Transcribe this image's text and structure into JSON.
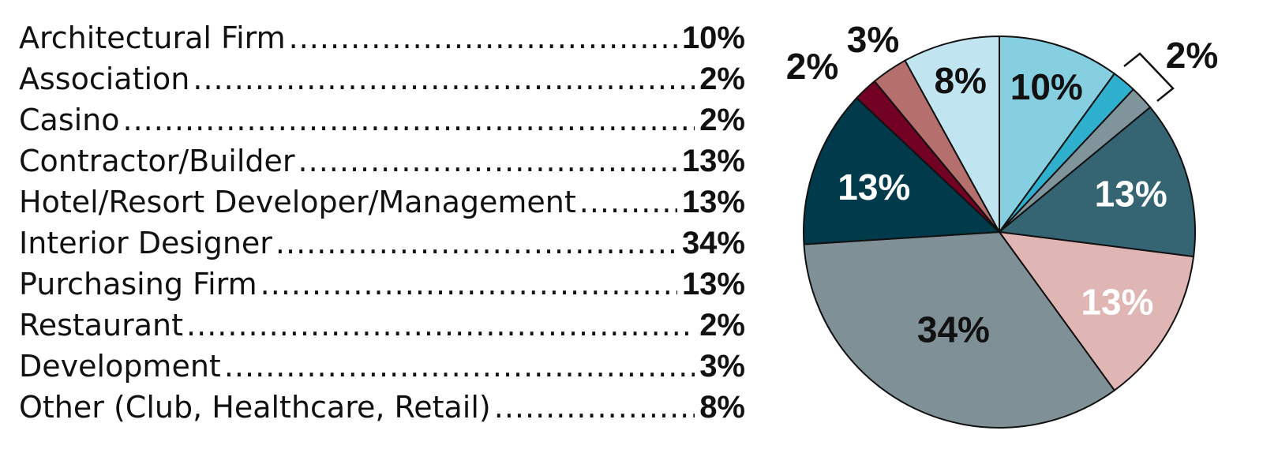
{
  "chart_data": {
    "type": "pie",
    "title": "",
    "categories": [
      "Architectural Firm",
      "Association",
      "Casino",
      "Contractor/Builder",
      "Hotel/Resort Developer/Management",
      "Interior Designer",
      "Purchasing Firm",
      "Restaurant",
      "Development",
      "Other (Club, Healthcare, Retail)"
    ],
    "values": [
      10,
      2,
      2,
      13,
      13,
      34,
      13,
      2,
      3,
      8
    ],
    "value_labels": [
      "10%",
      "2%",
      "2%",
      "13%",
      "13%",
      "34%",
      "13%",
      "2%",
      "3%",
      "8%"
    ],
    "slice_colors": [
      "#86cfe0",
      "#2fb0cf",
      "#7f959b",
      "#356473",
      "#e0b6b4",
      "#7f9197",
      "#013a4a",
      "#730123",
      "#b5706e",
      "#c1e5f0"
    ],
    "slice_label_colors": [
      "#111111",
      "#111111",
      "#111111",
      "#ffffff",
      "#ffffff",
      "#111111",
      "#ffffff",
      "#111111",
      "#111111",
      "#111111"
    ],
    "bracket_label": "2%"
  }
}
